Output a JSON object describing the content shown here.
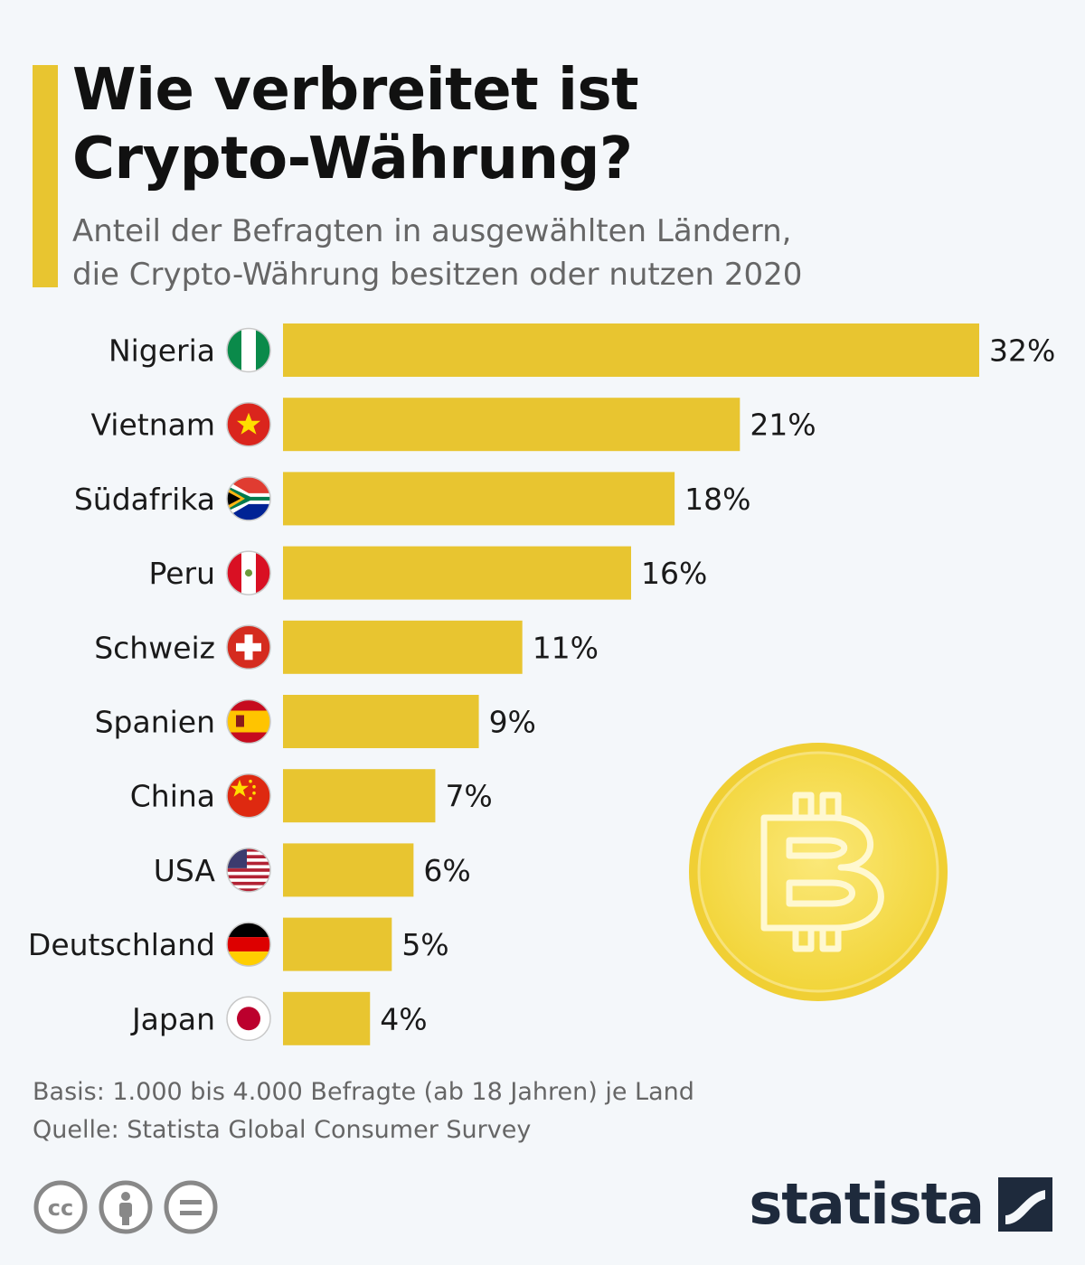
{
  "header": {
    "title_line1": "Wie verbreitet ist",
    "title_line2": "Crypto-Währung?",
    "subtitle_line1": "Anteil der Befragten in ausgewählten Ländern,",
    "subtitle_line2": "die Crypto-Währung besitzen oder nutzen 2020"
  },
  "colors": {
    "accent": "#e8c530",
    "bar": "#e8c530",
    "text": "#1a1a1a",
    "muted": "#666666",
    "brand": "#1e2a3c"
  },
  "chart_data": {
    "type": "bar",
    "orientation": "horizontal",
    "title": "Wie verbreitet ist Crypto-Währung?",
    "categories": [
      "Nigeria",
      "Vietnam",
      "Südafrika",
      "Peru",
      "Schweiz",
      "Spanien",
      "China",
      "USA",
      "Deutschland",
      "Japan"
    ],
    "values": [
      32,
      21,
      18,
      16,
      11,
      9,
      7,
      6,
      5,
      4
    ],
    "value_labels": [
      "32%",
      "21%",
      "18%",
      "16%",
      "11%",
      "9%",
      "7%",
      "6%",
      "5%",
      "4%"
    ],
    "flags": [
      "nigeria-flag-icon",
      "vietnam-flag-icon",
      "south-africa-flag-icon",
      "peru-flag-icon",
      "switzerland-flag-icon",
      "spain-flag-icon",
      "china-flag-icon",
      "usa-flag-icon",
      "germany-flag-icon",
      "japan-flag-icon"
    ],
    "xlim": [
      0,
      32
    ],
    "unit": "%",
    "grid": false,
    "xlabel": "",
    "ylabel": ""
  },
  "decoration": {
    "coin": "bitcoin-coin-icon"
  },
  "footer": {
    "basis": "Basis: 1.000 bis 4.000 Befragte (ab 18 Jahren) je Land",
    "source": "Quelle: Statista Global Consumer Survey",
    "brand": "statista",
    "license_icons": [
      "cc-icon",
      "by-icon",
      "nd-icon"
    ]
  }
}
